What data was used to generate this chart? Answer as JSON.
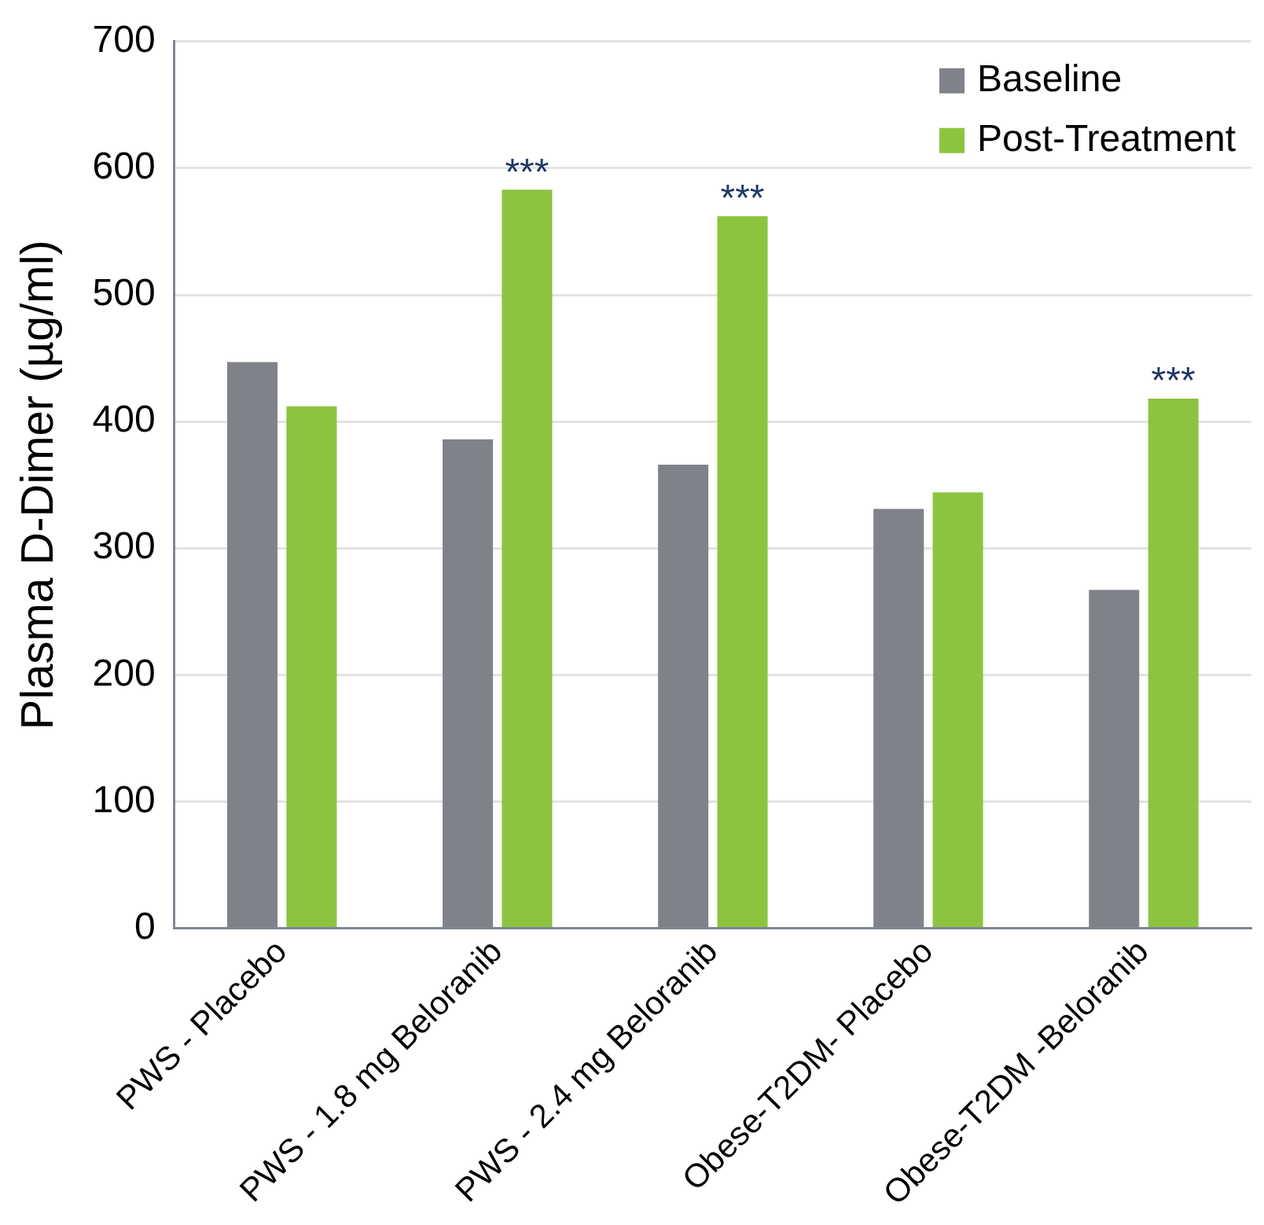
{
  "chart_data": {
    "type": "bar",
    "ylabel": "Plasma D-Dimer (µg/ml)",
    "categories": [
      "PWS - Placebo",
      "PWS - 1.8 mg Beloranib",
      "PWS - 2.4 mg Beloranib",
      "Obese-T2DM- Placebo",
      "Obese-T2DM -Beloranib"
    ],
    "series": [
      {
        "name": "Baseline",
        "color": "#80828a",
        "values": [
          447,
          386,
          366,
          331,
          267
        ]
      },
      {
        "name": "Post-Treatment",
        "color": "#8cc43f",
        "values": [
          412,
          583,
          562,
          344,
          418
        ]
      }
    ],
    "ylim": [
      0,
      700
    ],
    "yticks": [
      0,
      100,
      200,
      300,
      400,
      500,
      600,
      700
    ],
    "grid": "y",
    "legend": "top right",
    "annotations": [
      {
        "text": "***",
        "x": "PWS - 1.8 mg Beloranib",
        "y": 583
      },
      {
        "text": "***",
        "x": "PWS - 2.4 mg Beloranib",
        "y": 562
      },
      {
        "text": "***",
        "x": "Obese-T2DM -Beloranib",
        "y": 418
      }
    ]
  }
}
